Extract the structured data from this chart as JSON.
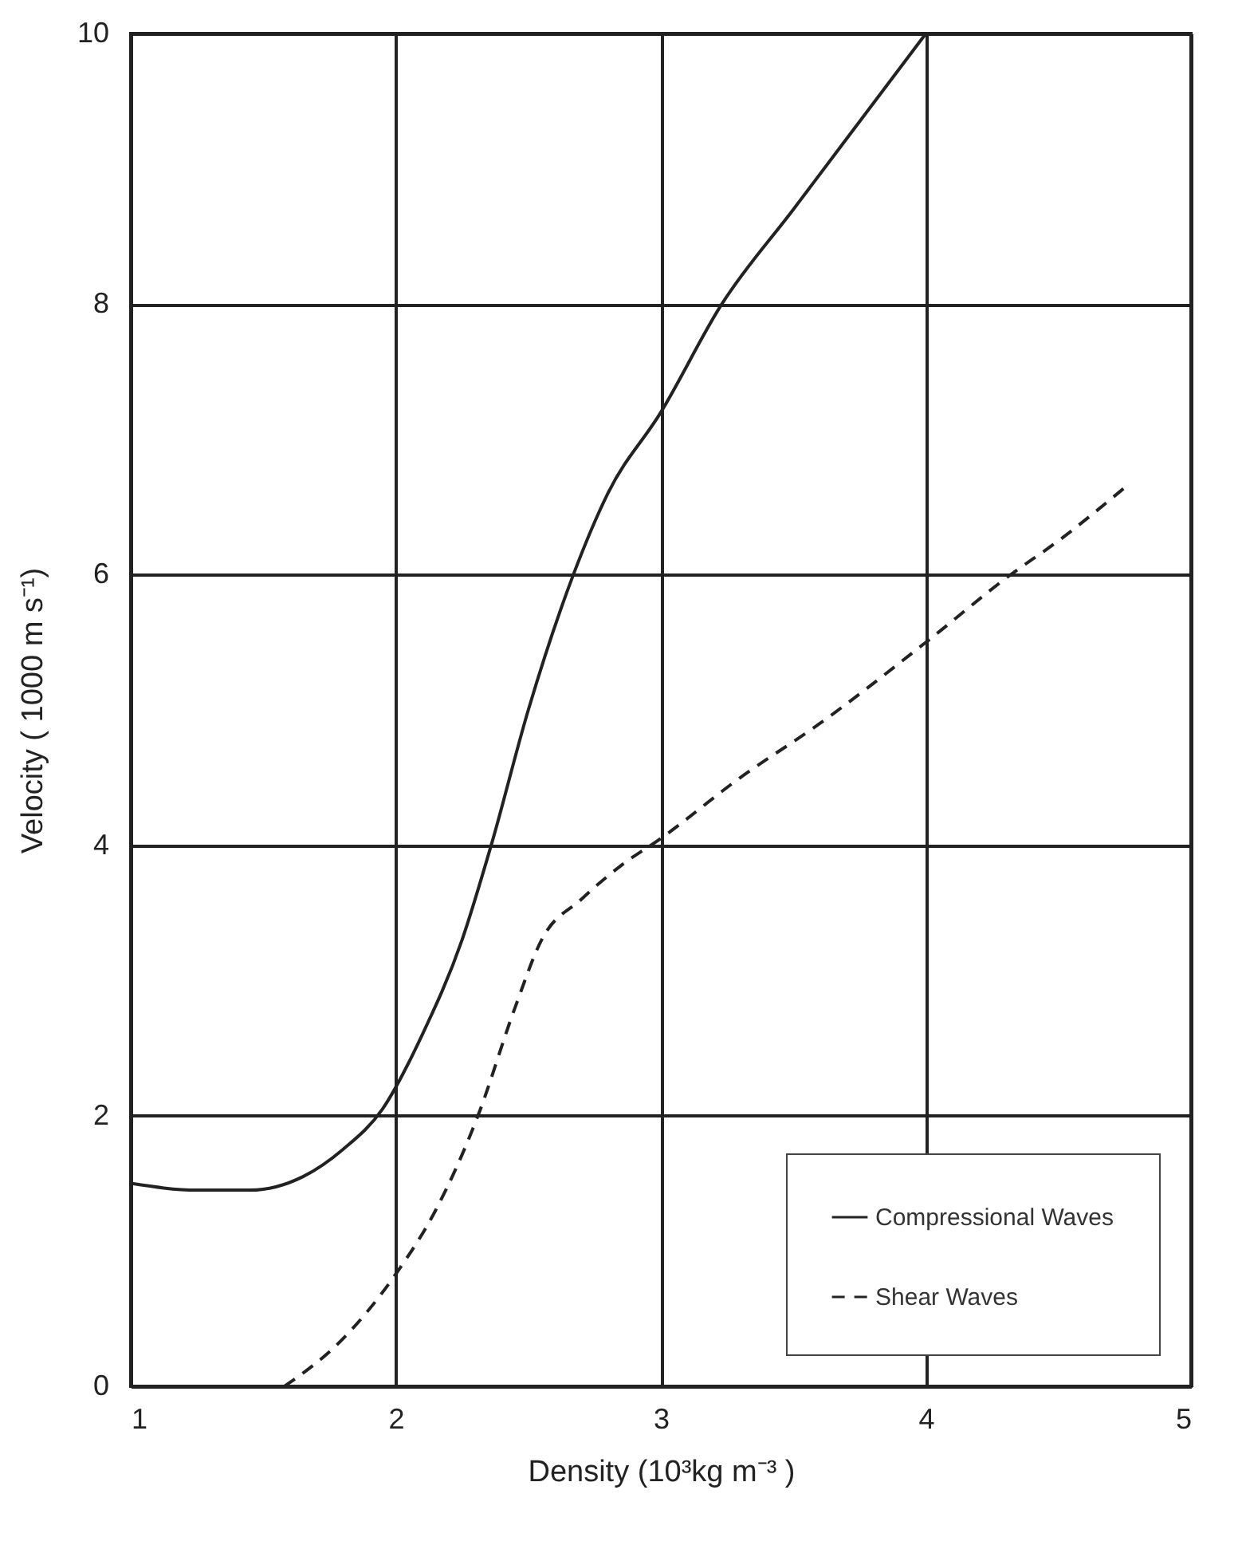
{
  "chart_data": {
    "type": "line",
    "xlabel": "Density (10³kg m⁻³ )",
    "ylabel": "Velocity  ( 1000 m s⁻¹)",
    "xlim": [
      1,
      5
    ],
    "xticks": [
      1,
      2,
      3,
      4,
      5
    ],
    "ylim": [
      0,
      10
    ],
    "yticks": [
      0,
      2,
      4,
      6,
      8,
      10
    ],
    "grid": true,
    "legend": "bottom right",
    "series": [
      {
        "name": "Compressional Waves",
        "color": "#222222",
        "line_style": "solid",
        "x": [
          1,
          1.25,
          1.45,
          1.65,
          1.8,
          1.95,
          2.1,
          2.25,
          2.36,
          2.5,
          2.67,
          2.8,
          3.0,
          3.23,
          3.5,
          3.75,
          4.0
        ],
        "values": [
          1.5,
          1.45,
          1.45,
          1.55,
          1.75,
          2.05,
          2.6,
          3.3,
          4.0,
          5.0,
          6.0,
          6.6,
          7.2,
          8.0,
          8.7,
          9.35,
          10
        ]
      },
      {
        "name": "Shear Waves",
        "color": "#222222",
        "line_style": "dashed",
        "x": [
          1.58,
          1.8,
          2.0,
          2.15,
          2.31,
          2.45,
          2.55,
          2.7,
          2.85,
          3.0,
          3.3,
          3.6,
          4.0,
          4.32,
          4.5,
          4.76
        ],
        "values": [
          0,
          0.35,
          0.83,
          1.3,
          2.0,
          2.8,
          3.3,
          3.6,
          3.85,
          4.05,
          4.5,
          4.9,
          5.5,
          6.0,
          6.25,
          6.66
        ]
      }
    ]
  }
}
